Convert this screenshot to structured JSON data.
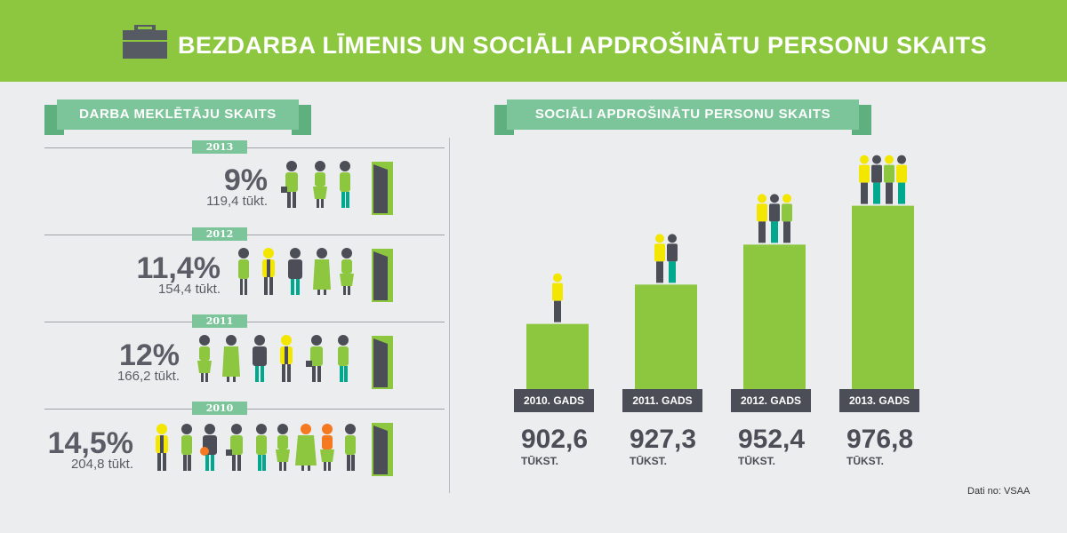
{
  "header": {
    "title": "BEZDARBA LĪMENIS UN SOCIĀLI APDROŠINĀTU PERSONU SKAITS",
    "icon": "briefcase-icon"
  },
  "colors": {
    "green": "#8dc63f",
    "teal": "#7cc49a",
    "dark": "#4c4e57"
  },
  "left_panel": {
    "title": "DARBA MEKLĒTĀJU SKAITS",
    "rows": [
      {
        "year": "2013",
        "percent": "9%",
        "count": "119,4 tūkt."
      },
      {
        "year": "2012",
        "percent": "11,4%",
        "count": "154,4 tūkt."
      },
      {
        "year": "2011",
        "percent": "12%",
        "count": "166,2 tūkt."
      },
      {
        "year": "2010",
        "percent": "14,5%",
        "count": "204,8 tūkt."
      }
    ]
  },
  "right_panel": {
    "title": "SOCIĀLI APDROŠINĀTU PERSONU SKAITS",
    "unit": "TŪKST."
  },
  "chart_data": {
    "type": "bar",
    "title": "SOCIĀLI APDROŠINĀTU PERSONU SKAITS",
    "categories": [
      "2010. GADS",
      "2011. GADS",
      "2012. GADS",
      "2013. GADS"
    ],
    "values": [
      902.6,
      927.3,
      952.4,
      976.8
    ],
    "value_labels": [
      "902,6",
      "927,3",
      "952,4",
      "976,8"
    ],
    "ylim": [
      855,
      1000
    ],
    "grid": false
  },
  "source": "Dati no: VSAA"
}
